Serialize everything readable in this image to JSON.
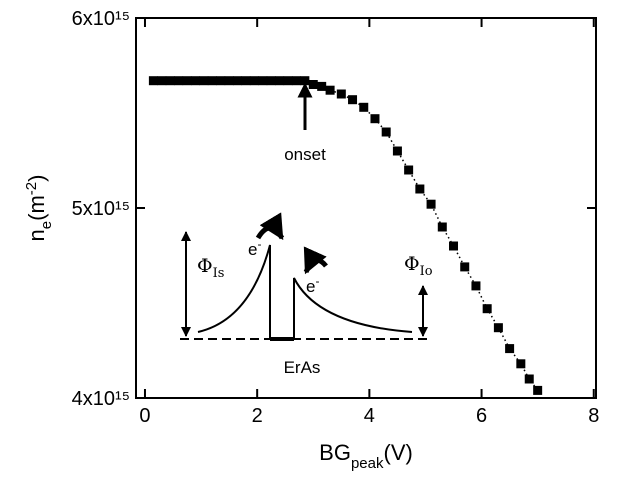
{
  "chart_data": {
    "type": "scatter",
    "x_label": [
      "BG",
      "peak",
      "(V)"
    ],
    "y_label": [
      "n",
      "e",
      "(m",
      "-2",
      ")"
    ],
    "xlim": [
      -0.16,
      8.04
    ],
    "xticks": [
      0,
      2,
      4,
      6,
      8
    ],
    "ylim": [
      4000000000000000.0,
      6000000000000000.0
    ],
    "yticks": [
      {
        "value": 4000000000000000.0,
        "label": "4x10¹⁵"
      },
      {
        "value": 5000000000000000.0,
        "label": "5x10¹⁵"
      },
      {
        "value": 6000000000000000.0,
        "label": "6x10¹⁵"
      }
    ],
    "series": [
      {
        "color": "#000000",
        "x": [
          0.15,
          0.3,
          0.45,
          0.6,
          0.75,
          0.9,
          1.05,
          1.2,
          1.35,
          1.5,
          1.65,
          1.8,
          1.95,
          2.1,
          2.25,
          2.4,
          2.55,
          2.7,
          2.85,
          3.0,
          3.15,
          3.3,
          3.5,
          3.7,
          3.9,
          4.1,
          4.3,
          4.5,
          4.7,
          4.9,
          5.1,
          5.3,
          5.5,
          5.7,
          5.9,
          6.1,
          6.3,
          6.5,
          6.7,
          6.85,
          7.0
        ],
        "values": [
          5670000000000000.0,
          5670000000000000.0,
          5670000000000000.0,
          5670000000000000.0,
          5670000000000000.0,
          5670000000000000.0,
          5670000000000000.0,
          5670000000000000.0,
          5670000000000000.0,
          5670000000000000.0,
          5670000000000000.0,
          5670000000000000.0,
          5670000000000000.0,
          5670000000000000.0,
          5670000000000000.0,
          5670000000000000.0,
          5670000000000000.0,
          5670000000000000.0,
          5670000000000000.0,
          5650000000000000.0,
          5640000000000000.0,
          5620000000000000.0,
          5600000000000000.0,
          5570000000000000.0,
          5530000000000000.0,
          5470000000000000.0,
          5400000000000000.0,
          5300000000000000.0,
          5200000000000000.0,
          5100000000000000.0,
          5020000000000000.0,
          4900000000000000.0,
          4800000000000000.0,
          4690000000000000.0,
          4590000000000000.0,
          4470000000000000.0,
          4370000000000000.0,
          4260000000000000.0,
          4180000000000000.0,
          4100000000000000.0,
          4040000000000000.0
        ]
      }
    ],
    "annotations": {
      "onset": "onset",
      "eras": "ErAs",
      "phi_is": [
        "Φ",
        "Is"
      ],
      "phi_io": [
        "Φ",
        "Io"
      ],
      "e1": [
        "e",
        "-"
      ],
      "e2": [
        "e",
        "-"
      ]
    }
  }
}
